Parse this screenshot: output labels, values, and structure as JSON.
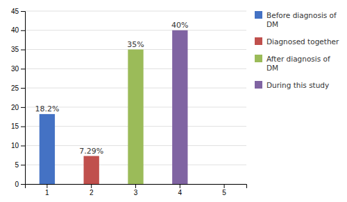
{
  "chart_data": {
    "type": "bar",
    "categories": [
      1,
      2,
      3,
      4,
      5
    ],
    "series": [
      {
        "name": "Before diagnosis of\nDM",
        "color": "#4472C4",
        "values": [
          18.2,
          null,
          null,
          null,
          null
        ],
        "value_labels": [
          "18.2%",
          null,
          null,
          null,
          null
        ]
      },
      {
        "name": "Diagnosed together",
        "color": "#C0504D",
        "values": [
          null,
          7.29,
          null,
          null,
          null
        ],
        "value_labels": [
          null,
          "7.29%",
          null,
          null,
          null
        ]
      },
      {
        "name": "After diagnosis of\nDM",
        "color": "#9BBB59",
        "values": [
          null,
          null,
          35,
          null,
          null
        ],
        "value_labels": [
          null,
          null,
          "35%",
          null,
          null
        ]
      },
      {
        "name": "During this study",
        "color": "#8064A2",
        "values": [
          null,
          null,
          null,
          40,
          null
        ],
        "value_labels": [
          null,
          null,
          null,
          "40%",
          null
        ]
      }
    ],
    "stacked": true,
    "data_labels": true,
    "ylim": [
      0,
      45
    ],
    "yticks": [
      0,
      5,
      10,
      15,
      20,
      25,
      30,
      35,
      40,
      45
    ],
    "grid": true,
    "legend": "right"
  }
}
